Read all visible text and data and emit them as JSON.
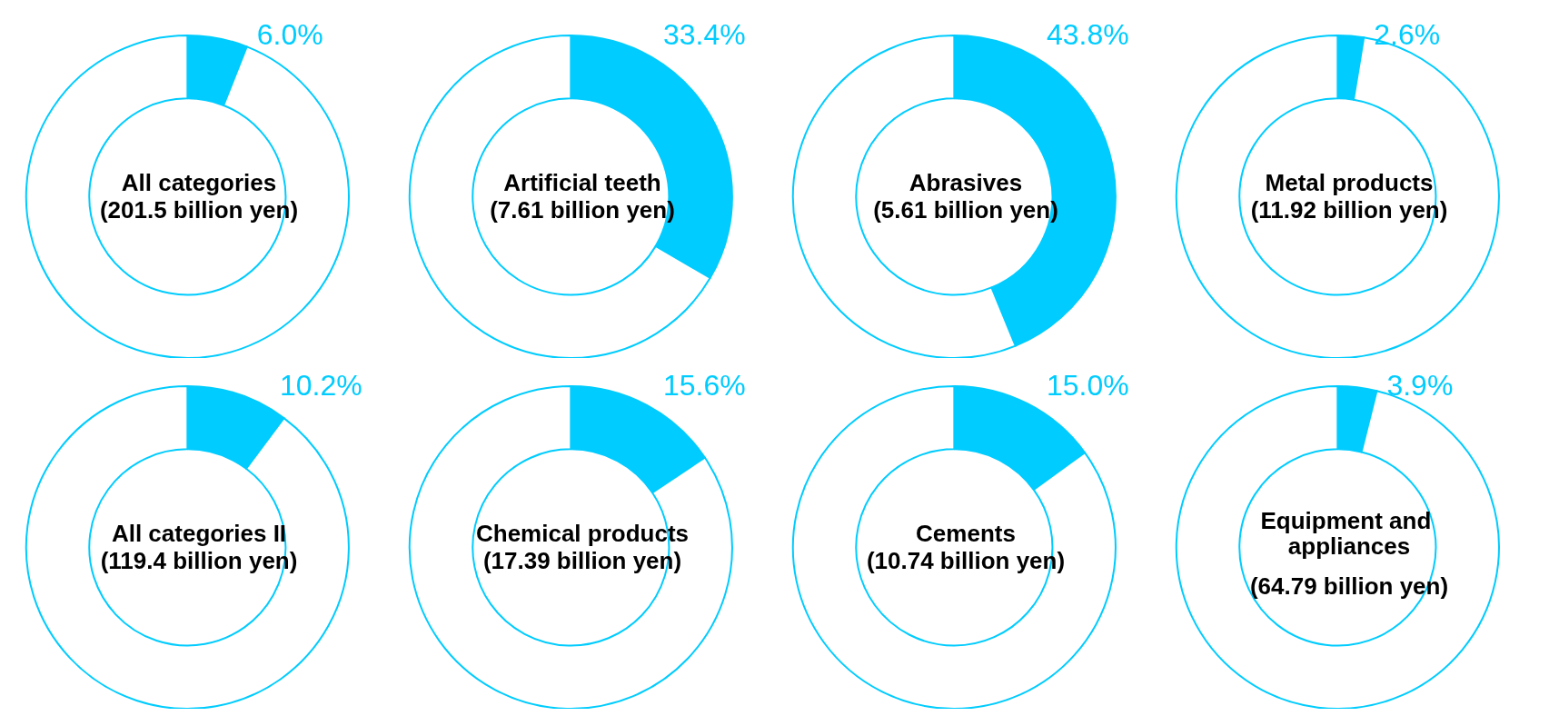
{
  "chart_data": [
    {
      "type": "donut",
      "title": "All categories",
      "subtitle": "(201.5 billion yen)",
      "categories": [
        null,
        null
      ],
      "values": [
        6.0,
        94.0
      ],
      "colors": [
        "#00ccff",
        "#ffffff"
      ],
      "value_labels": [
        "6.0%",
        null
      ]
    },
    {
      "type": "donut",
      "title": "Artificial teeth",
      "subtitle": "(7.61 billion yen)",
      "categories": [
        null,
        null
      ],
      "values": [
        33.4,
        66.6
      ],
      "colors": [
        "#00ccff",
        "#ffffff"
      ],
      "value_labels": [
        "33.4%",
        null
      ]
    },
    {
      "type": "donut",
      "title": "Abrasives",
      "subtitle": "(5.61 billion yen)",
      "categories": [
        null,
        null
      ],
      "values": [
        43.8,
        56.2
      ],
      "colors": [
        "#00ccff",
        "#ffffff"
      ],
      "value_labels": [
        "43.8%",
        null
      ]
    },
    {
      "type": "donut",
      "title": "Metal products",
      "subtitle": "(11.92 billion yen)",
      "categories": [
        null,
        null
      ],
      "values": [
        2.6,
        97.4
      ],
      "colors": [
        "#00ccff",
        "#ffffff"
      ],
      "value_labels": [
        "2.6%",
        null
      ]
    },
    {
      "type": "donut",
      "title": "All categories II",
      "subtitle": "(119.4 billion yen)",
      "categories": [
        null,
        null
      ],
      "values": [
        10.2,
        89.8
      ],
      "colors": [
        "#00ccff",
        "#ffffff"
      ],
      "value_labels": [
        "10.2%",
        null
      ]
    },
    {
      "type": "donut",
      "title": "Chemical products",
      "subtitle": "(17.39 billion yen)",
      "categories": [
        null,
        null
      ],
      "values": [
        15.6,
        84.4
      ],
      "colors": [
        "#00ccff",
        "#ffffff"
      ],
      "value_labels": [
        "15.6%",
        null
      ]
    },
    {
      "type": "donut",
      "title": "Cements",
      "subtitle": "(10.74 billion yen)",
      "categories": [
        null,
        null
      ],
      "values": [
        15.0,
        85.0
      ],
      "colors": [
        "#00ccff",
        "#ffffff"
      ],
      "value_labels": [
        "15.0%",
        null
      ]
    },
    {
      "type": "donut",
      "title": "Equipment and appliances",
      "subtitle": "(64.79 billion yen)",
      "categories": [
        null,
        null
      ],
      "values": [
        3.9,
        96.1
      ],
      "colors": [
        "#00ccff",
        "#ffffff"
      ],
      "value_labels": [
        "3.9%",
        null
      ]
    }
  ]
}
